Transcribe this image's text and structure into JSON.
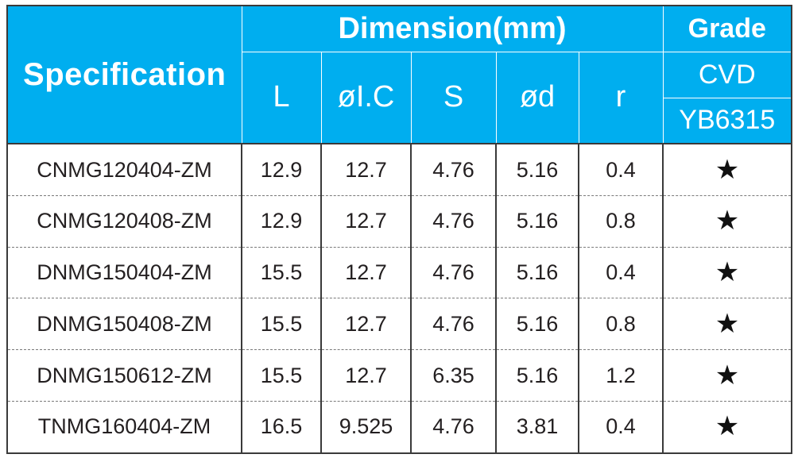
{
  "header": {
    "specification": "Specification",
    "dimension": "Dimension(mm)",
    "grade": "Grade",
    "cols": [
      "L",
      "øI.C",
      "S",
      "ød",
      "r"
    ],
    "grade_type": "CVD",
    "grade_code": "YB6315"
  },
  "rows": [
    {
      "spec": "CNMG120404-ZM",
      "L": "12.9",
      "ic": "12.7",
      "s": "4.76",
      "d": "5.16",
      "r": "0.4",
      "grade": "★"
    },
    {
      "spec": "CNMG120408-ZM",
      "L": "12.9",
      "ic": "12.7",
      "s": "4.76",
      "d": "5.16",
      "r": "0.8",
      "grade": "★"
    },
    {
      "spec": "DNMG150404-ZM",
      "L": "15.5",
      "ic": "12.7",
      "s": "4.76",
      "d": "5.16",
      "r": "0.4",
      "grade": "★"
    },
    {
      "spec": "DNMG150408-ZM",
      "L": "15.5",
      "ic": "12.7",
      "s": "4.76",
      "d": "5.16",
      "r": "0.8",
      "grade": "★"
    },
    {
      "spec": "DNMG150612-ZM",
      "L": "15.5",
      "ic": "12.7",
      "s": "6.35",
      "d": "5.16",
      "r": "1.2",
      "grade": "★"
    },
    {
      "spec": "TNMG160404-ZM",
      "L": "16.5",
      "ic": "9.525",
      "s": "4.76",
      "d": "3.81",
      "r": "0.4",
      "grade": "★"
    }
  ],
  "colors": {
    "header_bg": "#00aeef",
    "header_text": "#ffffff",
    "border": "#3a3a3a",
    "body_text": "#231f20"
  }
}
